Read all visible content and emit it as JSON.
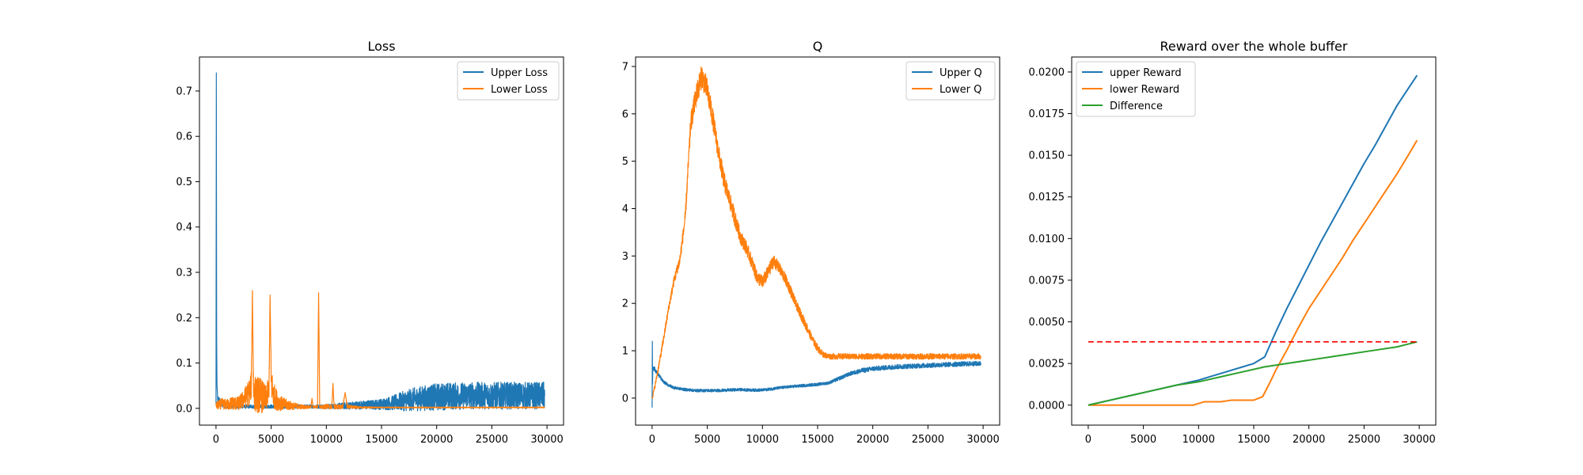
{
  "chart_data": [
    {
      "type": "line",
      "title": "Loss",
      "xlabel": "",
      "ylabel": "",
      "xlim": [
        -1500,
        31500
      ],
      "ylim": [
        -0.037,
        0.775
      ],
      "xticks": [
        0,
        5000,
        10000,
        15000,
        20000,
        25000,
        30000
      ],
      "xtick_labels": [
        "0",
        "5000",
        "10000",
        "15000",
        "20000",
        "25000",
        "30000"
      ],
      "yticks": [
        0.0,
        0.1,
        0.2,
        0.3,
        0.4,
        0.5,
        0.6,
        0.7
      ],
      "ytick_labels": [
        "0.0",
        "0.1",
        "0.2",
        "0.3",
        "0.4",
        "0.5",
        "0.6",
        "0.7"
      ],
      "grid": false,
      "legend_position": "upper right",
      "series": [
        {
          "name": "Upper Loss",
          "color": "#1f77b4",
          "x": [
            0,
            30,
            60,
            90,
            150,
            500,
            1000,
            1500,
            2000,
            3000,
            4000,
            5000,
            6000,
            7000,
            8000,
            9000,
            10000,
            11000,
            12000,
            13000,
            14000,
            15000,
            16000,
            17000,
            18000,
            19000,
            20000,
            21000,
            22000,
            23000,
            24000,
            25000,
            26000,
            27000,
            28000,
            29000,
            29800
          ],
          "y": [
            0.01,
            0.74,
            0.15,
            0.05,
            0.02,
            0.01,
            0.005,
            0.004,
            0.004,
            0.004,
            0.004,
            0.004,
            0.004,
            0.004,
            0.004,
            0.004,
            0.004,
            0.005,
            0.006,
            0.007,
            0.008,
            0.009,
            0.012,
            0.016,
            0.02,
            0.023,
            0.025,
            0.027,
            0.027,
            0.028,
            0.028,
            0.028,
            0.028,
            0.028,
            0.028,
            0.028,
            0.028
          ],
          "noise": [
            0.0,
            0.0,
            0.0,
            0.0,
            0.01,
            0.008,
            0.005,
            0.004,
            0.004,
            0.004,
            0.004,
            0.004,
            0.004,
            0.004,
            0.004,
            0.004,
            0.005,
            0.006,
            0.008,
            0.009,
            0.01,
            0.012,
            0.016,
            0.022,
            0.026,
            0.028,
            0.03,
            0.03,
            0.03,
            0.03,
            0.03,
            0.03,
            0.03,
            0.03,
            0.03,
            0.03,
            0.03
          ]
        },
        {
          "name": "Lower Loss",
          "color": "#ff7f0e",
          "x": [
            0,
            500,
            1000,
            1500,
            2000,
            2500,
            3000,
            3200,
            3300,
            3400,
            3600,
            4000,
            4500,
            4800,
            4900,
            5000,
            5200,
            5600,
            6000,
            7000,
            8000,
            8600,
            8700,
            8800,
            9000,
            9200,
            9300,
            9400,
            9600,
            10000,
            10500,
            10600,
            10700,
            11000,
            11500,
            11700,
            11900,
            12200,
            13000,
            15000,
            20000,
            25000,
            29800
          ],
          "y": [
            0.005,
            0.01,
            0.008,
            0.012,
            0.01,
            0.02,
            0.035,
            0.05,
            0.26,
            0.04,
            0.03,
            0.03,
            0.02,
            0.04,
            0.25,
            0.06,
            0.03,
            0.015,
            0.01,
            0.005,
            0.003,
            0.003,
            0.022,
            0.003,
            0.003,
            0.003,
            0.255,
            0.003,
            0.003,
            0.004,
            0.003,
            0.055,
            0.004,
            0.003,
            0.004,
            0.035,
            0.004,
            0.003,
            0.002,
            0.002,
            0.002,
            0.002,
            0.002
          ],
          "noise": [
            0.008,
            0.012,
            0.012,
            0.015,
            0.015,
            0.02,
            0.03,
            0.03,
            0.0,
            0.04,
            0.04,
            0.04,
            0.03,
            0.03,
            0.0,
            0.04,
            0.03,
            0.02,
            0.015,
            0.008,
            0.004,
            0.003,
            0.0,
            0.003,
            0.003,
            0.003,
            0.0,
            0.003,
            0.004,
            0.006,
            0.005,
            0.0,
            0.006,
            0.005,
            0.005,
            0.0,
            0.005,
            0.004,
            0.002,
            0.001,
            0.001,
            0.001,
            0.001
          ]
        }
      ]
    },
    {
      "type": "line",
      "title": "Q",
      "xlabel": "",
      "ylabel": "",
      "xlim": [
        -1500,
        31500
      ],
      "ylim": [
        -0.57,
        7.2
      ],
      "xticks": [
        0,
        5000,
        10000,
        15000,
        20000,
        25000,
        30000
      ],
      "xtick_labels": [
        "0",
        "5000",
        "10000",
        "15000",
        "20000",
        "25000",
        "30000"
      ],
      "yticks": [
        0,
        1,
        2,
        3,
        4,
        5,
        6,
        7
      ],
      "ytick_labels": [
        "0",
        "1",
        "2",
        "3",
        "4",
        "5",
        "6",
        "7"
      ],
      "grid": false,
      "legend_position": "upper right",
      "series": [
        {
          "name": "Upper Q",
          "color": "#1f77b4",
          "x": [
            0,
            20,
            40,
            60,
            100,
            200,
            400,
            700,
            1000,
            1500,
            2000,
            3000,
            4000,
            5000,
            6000,
            7000,
            8000,
            9000,
            10000,
            11000,
            12000,
            13000,
            14000,
            15000,
            16000,
            17000,
            18000,
            19000,
            20000,
            22000,
            24000,
            26000,
            28000,
            29800
          ],
          "y": [
            -0.2,
            1.2,
            0.3,
            0.6,
            0.65,
            0.62,
            0.55,
            0.45,
            0.35,
            0.27,
            0.22,
            0.18,
            0.16,
            0.16,
            0.16,
            0.17,
            0.18,
            0.17,
            0.17,
            0.2,
            0.23,
            0.25,
            0.27,
            0.29,
            0.32,
            0.42,
            0.52,
            0.58,
            0.62,
            0.66,
            0.68,
            0.7,
            0.72,
            0.73
          ],
          "noise": [
            0.0,
            0.0,
            0.0,
            0.05,
            0.05,
            0.05,
            0.04,
            0.04,
            0.03,
            0.03,
            0.03,
            0.03,
            0.03,
            0.03,
            0.03,
            0.03,
            0.03,
            0.03,
            0.03,
            0.03,
            0.03,
            0.03,
            0.03,
            0.03,
            0.03,
            0.04,
            0.04,
            0.05,
            0.05,
            0.05,
            0.05,
            0.05,
            0.05,
            0.05
          ]
        },
        {
          "name": "Lower Q",
          "color": "#ff7f0e",
          "x": [
            0,
            250,
            500,
            1000,
            1500,
            2000,
            2500,
            3000,
            3500,
            4000,
            4500,
            5000,
            5500,
            6000,
            6500,
            7000,
            7500,
            8000,
            8500,
            9000,
            9500,
            10000,
            10500,
            11000,
            11500,
            12000,
            12500,
            13000,
            13500,
            14000,
            14500,
            15000,
            15500,
            16000,
            17000,
            20000,
            25000,
            29800
          ],
          "y": [
            0.0,
            0.25,
            0.55,
            1.2,
            1.9,
            2.5,
            2.9,
            3.8,
            5.8,
            6.4,
            6.8,
            6.5,
            5.9,
            5.2,
            4.6,
            4.2,
            3.8,
            3.4,
            3.2,
            2.9,
            2.55,
            2.45,
            2.65,
            2.9,
            2.75,
            2.55,
            2.3,
            2.0,
            1.75,
            1.5,
            1.25,
            1.05,
            0.92,
            0.88,
            0.88,
            0.88,
            0.88,
            0.88
          ],
          "noise": [
            0.05,
            0.05,
            0.06,
            0.08,
            0.08,
            0.1,
            0.12,
            0.15,
            0.2,
            0.25,
            0.25,
            0.25,
            0.22,
            0.2,
            0.2,
            0.18,
            0.18,
            0.15,
            0.15,
            0.14,
            0.14,
            0.14,
            0.14,
            0.14,
            0.12,
            0.12,
            0.12,
            0.1,
            0.1,
            0.1,
            0.08,
            0.08,
            0.06,
            0.06,
            0.06,
            0.06,
            0.06,
            0.06
          ]
        }
      ]
    },
    {
      "type": "line",
      "title": "Reward over the whole buffer",
      "xlabel": "",
      "ylabel": "",
      "xlim": [
        -1500,
        31500
      ],
      "ylim": [
        -0.0012,
        0.0209
      ],
      "xticks": [
        0,
        5000,
        10000,
        15000,
        20000,
        25000,
        30000
      ],
      "xtick_labels": [
        "0",
        "5000",
        "10000",
        "15000",
        "20000",
        "25000",
        "30000"
      ],
      "yticks": [
        0.0,
        0.0025,
        0.005,
        0.0075,
        0.01,
        0.0125,
        0.015,
        0.0175,
        0.02
      ],
      "ytick_labels": [
        "0.0000",
        "0.0025",
        "0.0050",
        "0.0075",
        "0.0100",
        "0.0125",
        "0.0150",
        "0.0175",
        "0.0200"
      ],
      "grid": false,
      "legend_position": "upper left",
      "series": [
        {
          "name": "upper Reward",
          "color": "#1f77b4",
          "x": [
            0,
            2000,
            4000,
            6000,
            8000,
            10000,
            11000,
            12000,
            13000,
            14000,
            15000,
            16000,
            17000,
            18000,
            19000,
            20000,
            21000,
            22000,
            23000,
            24000,
            25000,
            26000,
            27000,
            28000,
            29000,
            29800
          ],
          "y": [
            0.0,
            0.0003,
            0.0006,
            0.0009,
            0.0012,
            0.0015,
            0.0017,
            0.0019,
            0.0021,
            0.0023,
            0.0025,
            0.0029,
            0.0044,
            0.0058,
            0.0071,
            0.0084,
            0.0097,
            0.0109,
            0.0121,
            0.0133,
            0.0145,
            0.0156,
            0.0168,
            0.018,
            0.019,
            0.0198
          ],
          "noise": []
        },
        {
          "name": "lower Reward",
          "color": "#ff7f0e",
          "x": [
            0,
            5000,
            9500,
            10000,
            10500,
            11000,
            12000,
            13000,
            14000,
            15000,
            15800,
            16500,
            17000,
            18000,
            19000,
            20000,
            21000,
            22000,
            23000,
            24000,
            25000,
            26000,
            27000,
            28000,
            29000,
            29800
          ],
          "y": [
            0.0,
            0.0,
            0.0,
            0.0001,
            0.0002,
            0.0002,
            0.0002,
            0.0003,
            0.0003,
            0.0003,
            0.0005,
            0.0014,
            0.0021,
            0.0033,
            0.0046,
            0.0058,
            0.0068,
            0.0078,
            0.0088,
            0.0099,
            0.0109,
            0.0119,
            0.0129,
            0.0139,
            0.015,
            0.0159
          ],
          "noise": []
        },
        {
          "name": "Difference",
          "color": "#2ca02c",
          "x": [
            0,
            2000,
            4000,
            6000,
            8000,
            10000,
            12000,
            14000,
            16000,
            18000,
            20000,
            22000,
            24000,
            26000,
            28000,
            29800
          ],
          "y": [
            0.0,
            0.0003,
            0.0006,
            0.0009,
            0.0012,
            0.0014,
            0.0017,
            0.002,
            0.0023,
            0.0025,
            0.0027,
            0.0029,
            0.0031,
            0.0033,
            0.0035,
            0.0038
          ],
          "noise": []
        }
      ],
      "reference_line": {
        "y": 0.0038,
        "x_start": 0,
        "x_end": 29800,
        "color": "#ff0000",
        "style": "dashed"
      }
    }
  ]
}
